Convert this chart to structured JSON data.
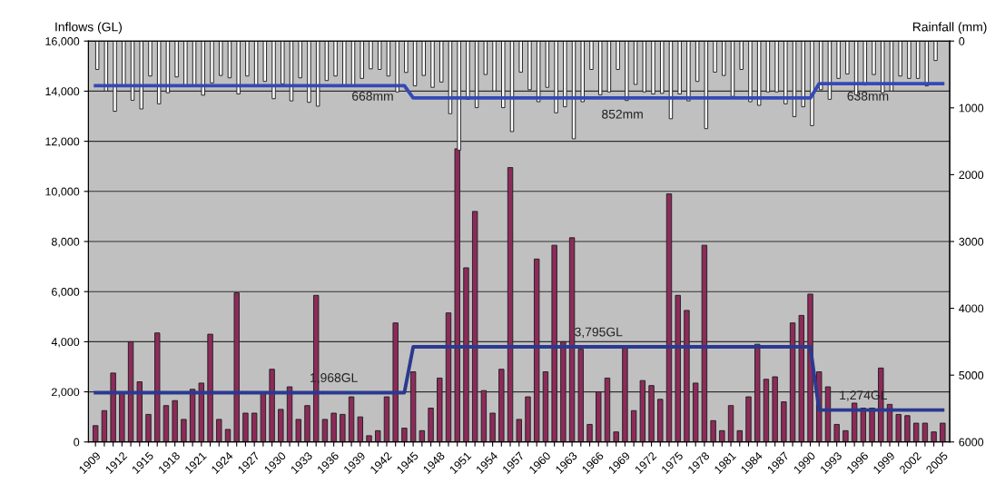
{
  "chart_data": {
    "type": "bar",
    "ylabel": "Inflows (GL)",
    "y2label": "Rainfall (mm)",
    "categories": [
      "1909",
      null,
      null,
      "1912",
      null,
      null,
      "1915",
      null,
      null,
      "1918",
      null,
      null,
      "1921",
      null,
      null,
      "1924",
      null,
      null,
      "1927",
      null,
      null,
      "1930",
      null,
      null,
      "1933",
      null,
      null,
      "1936",
      null,
      null,
      "1939",
      null,
      null,
      "1942",
      null,
      null,
      "1945",
      null,
      null,
      "1948",
      null,
      null,
      "1951",
      null,
      null,
      "1954",
      null,
      null,
      "1957",
      null,
      null,
      "1960",
      null,
      null,
      "1963",
      null,
      null,
      "1966",
      null,
      null,
      "1969",
      null,
      null,
      "1972",
      null,
      null,
      "1975",
      null,
      null,
      "1978",
      null,
      null,
      "1981",
      null,
      null,
      "1984",
      null,
      null,
      "1987",
      null,
      null,
      "1990",
      null,
      null,
      "1993",
      null,
      null,
      "1996",
      null,
      null,
      "1999",
      null,
      null,
      "2002",
      null,
      null,
      "2005"
    ],
    "series": [
      {
        "color": "#8e2a5a",
        "values": [
          650,
          1250,
          2750,
          1950,
          4000,
          2400,
          1100,
          4350,
          1450,
          1650,
          900,
          2100,
          2350,
          4300,
          900,
          500,
          5950,
          1150,
          1150,
          1950,
          2900,
          1300,
          2200,
          900,
          1450,
          5850,
          900,
          1150,
          1100,
          1800,
          1000,
          250,
          450,
          1800,
          4750,
          550,
          2800,
          450,
          1350,
          2550,
          5150,
          11700,
          6950,
          9200,
          2050,
          1150,
          2900,
          10950,
          900,
          1800,
          7300,
          2800,
          7850,
          4000,
          8150,
          3700,
          700,
          2000,
          2550,
          400,
          3800,
          1250,
          2450,
          2250,
          1700,
          9900,
          5850,
          5250,
          2350,
          7850,
          850,
          450,
          1450,
          450,
          1800,
          3900,
          2500,
          2600,
          1600,
          4750,
          5050,
          5900,
          2800,
          2200,
          700,
          450,
          1550,
          1350,
          1350,
          2950,
          1500,
          1100,
          1050,
          750,
          750,
          400,
          750
        ]
      },
      {
        "type": "bar",
        "axis": "y2",
        "color": "#ffffff",
        "values": [
          425,
          747,
          1051,
          671,
          886,
          1016,
          523,
          940,
          774,
          537,
          671,
          671,
          810,
          626,
          515,
          550,
          792,
          523,
          671,
          604,
          863,
          640,
          895,
          550,
          917,
          975,
          591,
          523,
          671,
          671,
          559,
          416,
          425,
          523,
          761,
          470,
          671,
          515,
          693,
          613,
          1087,
          1633,
          872,
          997,
          501,
          747,
          997,
          1355,
          465,
          729,
          908,
          693,
          1074,
          984,
          1463,
          908,
          425,
          805,
          761,
          425,
          890,
          649,
          761,
          792,
          783,
          1163,
          792,
          895,
          604,
          1311,
          465,
          515,
          828,
          425,
          908,
          962,
          761,
          761,
          940,
          1132,
          984,
          1266,
          729,
          872,
          559,
          492,
          805,
          658,
          501,
          774,
          747,
          523,
          559,
          559,
          671,
          291,
          null
        ]
      },
      {
        "type": "line",
        "color": "#2b3990",
        "values": [
          1968,
          1968,
          1968,
          1968,
          1968,
          1968,
          1968,
          1968,
          1968,
          1968,
          1968,
          1968,
          1968,
          1968,
          1968,
          1968,
          1968,
          1968,
          1968,
          1968,
          1968,
          1968,
          1968,
          1968,
          1968,
          1968,
          1968,
          1968,
          1968,
          1968,
          1968,
          1968,
          1968,
          1968,
          1968,
          1968,
          3795,
          3795,
          3795,
          3795,
          3795,
          3795,
          3795,
          3795,
          3795,
          3795,
          3795,
          3795,
          3795,
          3795,
          3795,
          3795,
          3795,
          3795,
          3795,
          3795,
          3795,
          3795,
          3795,
          3795,
          3795,
          3795,
          3795,
          3795,
          3795,
          3795,
          3795,
          3795,
          3795,
          3795,
          3795,
          3795,
          3795,
          3795,
          3795,
          3795,
          3795,
          3795,
          3795,
          3795,
          3795,
          3795,
          1274,
          1274,
          1274,
          1274,
          1274,
          1274,
          1274,
          1274,
          1274,
          1274,
          1274,
          1274,
          1274,
          1274,
          1274
        ]
      },
      {
        "type": "line",
        "axis": "y2",
        "color": "#3549b5",
        "values": [
          668,
          668,
          668,
          668,
          668,
          668,
          668,
          668,
          668,
          668,
          668,
          668,
          668,
          668,
          668,
          668,
          668,
          668,
          668,
          668,
          668,
          668,
          668,
          668,
          668,
          668,
          668,
          668,
          668,
          668,
          668,
          668,
          668,
          668,
          668,
          668,
          852,
          852,
          852,
          852,
          852,
          852,
          852,
          852,
          852,
          852,
          852,
          852,
          852,
          852,
          852,
          852,
          852,
          852,
          852,
          852,
          852,
          852,
          852,
          852,
          852,
          852,
          852,
          852,
          852,
          852,
          852,
          852,
          852,
          852,
          852,
          852,
          852,
          852,
          852,
          852,
          852,
          852,
          852,
          852,
          852,
          852,
          638,
          638,
          638,
          638,
          638,
          638,
          638,
          638,
          638,
          638,
          638,
          638,
          638,
          638,
          638
        ]
      }
    ],
    "ylim": [
      0,
      16000
    ],
    "yticks": [
      0,
      {
        "value": 2000,
        "label": "2,000"
      },
      {
        "value": 4000,
        "label": "4,000"
      },
      {
        "value": 6000,
        "label": "6,000"
      },
      {
        "value": 8000,
        "label": "8,000"
      },
      {
        "value": 10000,
        "label": "10,000"
      },
      {
        "value": 12000,
        "label": "12,000"
      },
      {
        "value": 14000,
        "label": "14,000"
      },
      {
        "value": 16000,
        "label": "16,000"
      }
    ],
    "y2lim": [
      6000,
      0
    ],
    "y2ticks": [
      0,
      1000,
      2000,
      3000,
      4000,
      5000,
      6000
    ],
    "grid": "y",
    "legend": false,
    "annotations": [
      "668mm",
      "852mm",
      "638mm",
      {
        "text": "1,968GL",
        "x": "1936",
        "y": 1968
      },
      {
        "text": "3,795GL",
        "x": "1966",
        "y": 3795
      },
      {
        "text": "1,274GL",
        "x": "1996",
        "y": 1274
      }
    ]
  }
}
